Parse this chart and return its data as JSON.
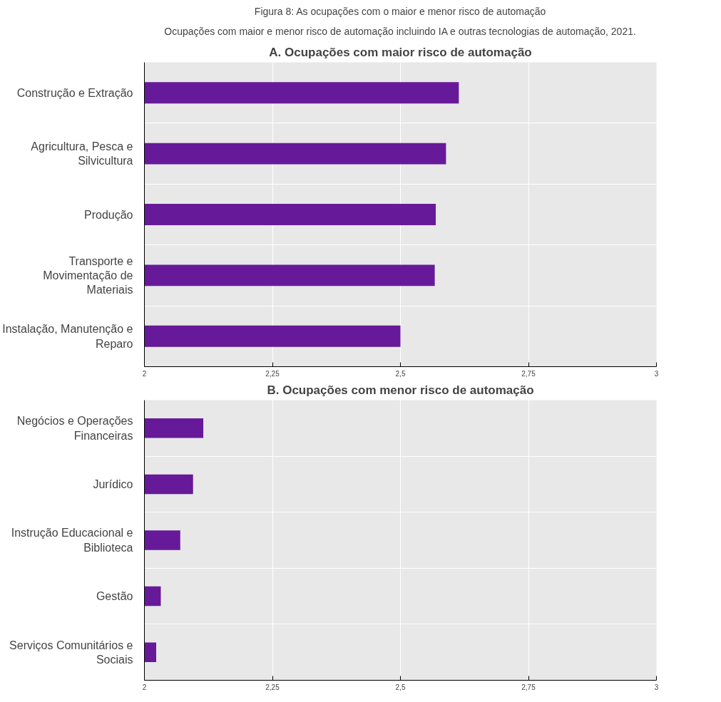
{
  "chart_data": [
    {
      "type": "bar",
      "orientation": "horizontal",
      "title": "A. Ocupações com maior risco de automação",
      "annotations": [
        "Figura 8: As ocupações com o maior e menor risco de automação",
        "Ocupações com maior e menor risco de automação incluindo IA e outras tecnologias de automação, 2021."
      ],
      "categories": [
        "Construção e Extração",
        "Agricultura, Pesca e Silvicultura",
        "Produção",
        "Transporte e Movimentação de Materiais",
        "Instalação, Manutenção e Reparo"
      ],
      "values": [
        2.614,
        2.589,
        2.569,
        2.567,
        2.5
      ],
      "color": "#661a99",
      "xlim": [
        2,
        3
      ],
      "xticks": [
        2,
        {
          "value": 2.25,
          "label": "2,25"
        },
        {
          "value": 2.5,
          "label": "2,5"
        },
        {
          "value": 2.75,
          "label": "2,75"
        },
        3
      ],
      "grid": true
    },
    {
      "type": "bar",
      "orientation": "horizontal",
      "title": "B. Ocupações com menor risco de automação",
      "categories": [
        "Negócios e Operações Financeiras",
        "Jurídico",
        "Instrução Educacional e Biblioteca",
        "Gestão",
        "Serviços Comunitários e Sociais"
      ],
      "values": [
        2.115,
        2.095,
        2.07,
        2.032,
        2.023
      ],
      "color": "#661a99",
      "xlim": [
        2,
        3
      ],
      "xticks": [
        2,
        {
          "value": 2.25,
          "label": "2,25"
        },
        {
          "value": 2.5,
          "label": "2,5"
        },
        {
          "value": 2.75,
          "label": "2,75"
        },
        3
      ],
      "grid": true
    }
  ]
}
